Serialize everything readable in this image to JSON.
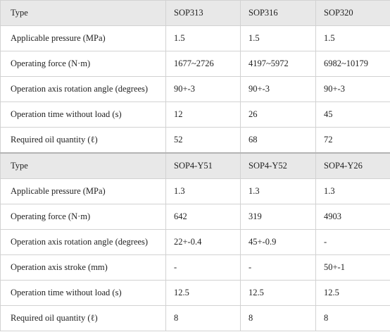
{
  "table1": {
    "header": [
      "Type",
      "SOP313",
      "SOP316",
      "SOP320"
    ],
    "rows": [
      [
        "Applicable pressure (MPa)",
        "1.5",
        "1.5",
        "1.5"
      ],
      [
        "Operating force (N·m)",
        "1677~2726",
        "4197~5972",
        "6982~10179"
      ],
      [
        "Operation axis rotation angle (degrees)",
        "90+-3",
        "90+-3",
        "90+-3"
      ],
      [
        "Operation time without load (s)",
        "12",
        "26",
        "45"
      ],
      [
        "Required oil quantity (ℓ)",
        "52",
        "68",
        "72"
      ]
    ]
  },
  "table2": {
    "header": [
      "Type",
      "SOP4-Y51",
      "SOP4-Y52",
      "SOP4-Y26"
    ],
    "rows": [
      [
        "Applicable pressure (MPa)",
        "1.3",
        "1.3",
        "1.3"
      ],
      [
        "Operating force (N·m)",
        "642",
        "319",
        "4903"
      ],
      [
        "Operation axis rotation angle (degrees)",
        "22+-0.4",
        "45+-0.9",
        "-"
      ],
      [
        "Operation axis stroke (mm)",
        "-",
        "-",
        "50+-1"
      ],
      [
        "Operation time without load (s)",
        "12.5",
        "12.5",
        "12.5"
      ],
      [
        "Required oil quantity (ℓ)",
        "8",
        "8",
        "8"
      ]
    ]
  }
}
